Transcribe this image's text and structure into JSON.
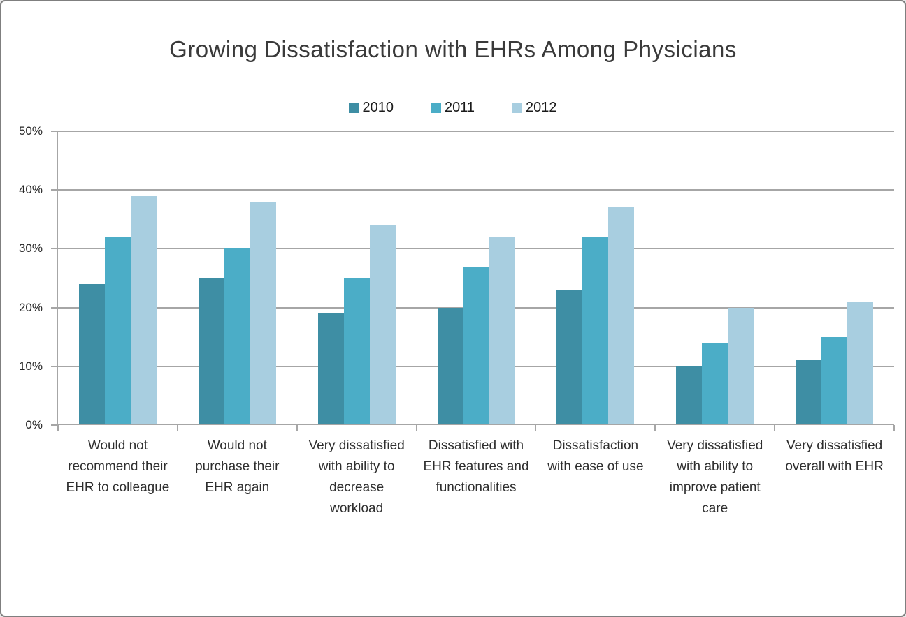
{
  "page": {
    "background_color": "#ffffff",
    "border_color": "#7f7f7f"
  },
  "chart_data": {
    "type": "bar",
    "title": "Growing Dissatisfaction with EHRs Among Physicians",
    "categories": [
      "Would not recommend their EHR to colleague",
      "Would not purchase their EHR again",
      "Very dissatisfied with ability to decrease workload",
      "Dissatisfied with EHR features and functionalities",
      "Dissatisfaction with ease of use",
      "Very dissatisfied with ability to improve patient care",
      "Very dissatisfied overall with EHR"
    ],
    "series": [
      {
        "name": "2010",
        "color": "#3E8EA4",
        "values": [
          24,
          25,
          19,
          20,
          23,
          10,
          11
        ]
      },
      {
        "name": "2011",
        "color": "#4BADC7",
        "values": [
          32,
          30,
          25,
          27,
          32,
          14,
          15
        ]
      },
      {
        "name": "2012",
        "color": "#A8CEE0",
        "values": [
          39,
          38,
          34,
          32,
          37,
          20,
          21
        ]
      }
    ],
    "xlabel": "",
    "ylabel": "",
    "ylim": [
      0,
      50
    ],
    "ytick_step": 10,
    "ytick_labels": [
      "0%",
      "10%",
      "20%",
      "30%",
      "40%",
      "50%"
    ],
    "grid": "horizontal",
    "gridline_color": "#A6A6A6",
    "axis_color": "#A6A6A6",
    "legend_position": "top-center"
  }
}
